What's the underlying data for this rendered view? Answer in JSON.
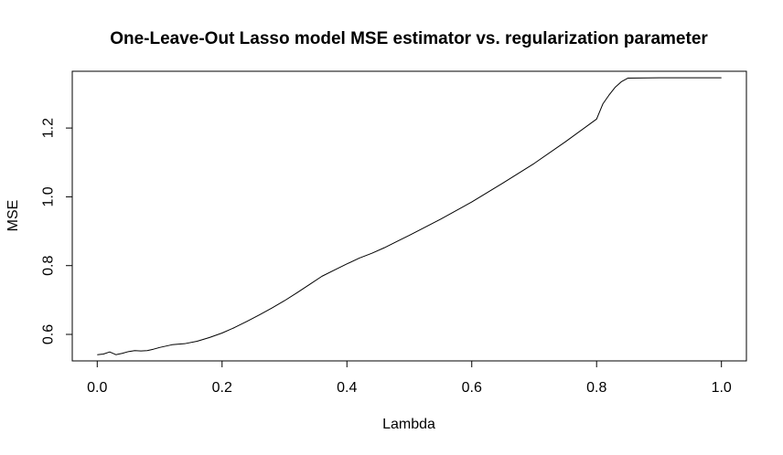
{
  "chart_data": {
    "type": "line",
    "title": "One-Leave-Out Lasso model MSE estimator vs. regularization parameter",
    "xlabel": "Lambda",
    "ylabel": "MSE",
    "xlim": [
      -0.04,
      1.04
    ],
    "ylim": [
      0.523,
      1.365
    ],
    "xticks": [
      0.0,
      0.2,
      0.4,
      0.6,
      0.8,
      1.0
    ],
    "xtick_labels": [
      "0.0",
      "0.2",
      "0.4",
      "0.6",
      "0.8",
      "1.0"
    ],
    "yticks": [
      0.6,
      0.8,
      1.0,
      1.2
    ],
    "ytick_labels": [
      "0.6",
      "0.8",
      "1.0",
      "1.2"
    ],
    "grid": false,
    "line_color": "#000000",
    "series": [
      {
        "x": [
          0.0,
          0.01,
          0.02,
          0.03,
          0.04,
          0.05,
          0.06,
          0.07,
          0.08,
          0.09,
          0.1,
          0.12,
          0.14,
          0.16,
          0.18,
          0.2,
          0.22,
          0.24,
          0.26,
          0.28,
          0.3,
          0.32,
          0.34,
          0.36,
          0.38,
          0.4,
          0.42,
          0.44,
          0.46,
          0.48,
          0.5,
          0.55,
          0.6,
          0.65,
          0.7,
          0.75,
          0.8,
          0.81,
          0.82,
          0.83,
          0.84,
          0.85,
          0.9,
          0.95,
          1.0
        ],
        "y": [
          0.541,
          0.543,
          0.549,
          0.541,
          0.545,
          0.55,
          0.553,
          0.552,
          0.553,
          0.557,
          0.562,
          0.57,
          0.573,
          0.58,
          0.591,
          0.604,
          0.62,
          0.638,
          0.657,
          0.677,
          0.698,
          0.721,
          0.745,
          0.769,
          0.787,
          0.805,
          0.822,
          0.836,
          0.852,
          0.87,
          0.888,
          0.935,
          0.985,
          1.04,
          1.097,
          1.16,
          1.226,
          1.27,
          1.296,
          1.319,
          1.335,
          1.345,
          1.346,
          1.346,
          1.346
        ]
      }
    ]
  }
}
